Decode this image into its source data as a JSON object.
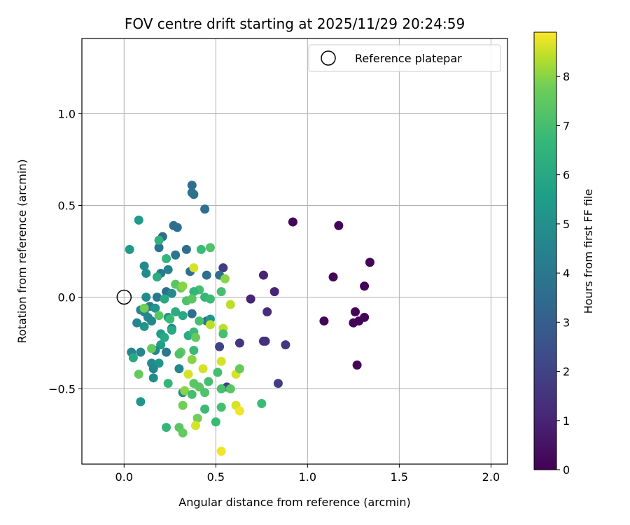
{
  "chart_data": {
    "type": "scatter",
    "title": "FOV centre drift starting at 2025/11/29 20:24:59",
    "xlabel": "Angular distance from reference (arcmin)",
    "ylabel": "Rotation from reference (arcmin)",
    "xlim": [
      -0.23,
      2.09
    ],
    "ylim": [
      -0.91,
      1.41
    ],
    "xticks": [
      0.0,
      0.5,
      1.0,
      1.5,
      2.0
    ],
    "xtick_labels": [
      "0.0",
      "0.5",
      "1.0",
      "1.5",
      "2.0"
    ],
    "yticks": [
      -0.5,
      0.0,
      0.5,
      1.0
    ],
    "ytick_labels": [
      "−0.5",
      "0.0",
      "0.5",
      "1.0"
    ],
    "grid": true,
    "legend": {
      "location": "top-right",
      "entries": [
        "Reference platepar"
      ]
    },
    "reference_point": {
      "x": 0.0,
      "y": 0.0,
      "label": "Reference platepar"
    },
    "colorbar": {
      "label": "Hours from first FF file",
      "colormap": "viridis",
      "range": [
        0,
        8.9
      ],
      "ticks": [
        0,
        1,
        2,
        3,
        4,
        5,
        6,
        7,
        8
      ],
      "tick_labels": [
        "0",
        "1",
        "2",
        "3",
        "4",
        "5",
        "6",
        "7",
        "8"
      ]
    },
    "points": [
      {
        "x": 0.92,
        "y": 0.41,
        "h": 0.1
      },
      {
        "x": 1.17,
        "y": 0.39,
        "h": 0.1
      },
      {
        "x": 1.34,
        "y": 0.19,
        "h": 0.1
      },
      {
        "x": 1.14,
        "y": 0.11,
        "h": 0.1
      },
      {
        "x": 1.31,
        "y": 0.06,
        "h": 0.1
      },
      {
        "x": 1.26,
        "y": -0.08,
        "h": 0.1
      },
      {
        "x": 1.31,
        "y": -0.11,
        "h": 0.1
      },
      {
        "x": 1.28,
        "y": -0.13,
        "h": 0.1
      },
      {
        "x": 1.25,
        "y": -0.14,
        "h": 0.1
      },
      {
        "x": 1.09,
        "y": -0.13,
        "h": 0.1
      },
      {
        "x": 1.27,
        "y": -0.37,
        "h": 0.1
      },
      {
        "x": 0.82,
        "y": 0.03,
        "h": 1.0
      },
      {
        "x": 0.76,
        "y": 0.12,
        "h": 1.0
      },
      {
        "x": 0.69,
        "y": -0.01,
        "h": 1.0
      },
      {
        "x": 0.78,
        "y": -0.08,
        "h": 1.3
      },
      {
        "x": 0.77,
        "y": -0.24,
        "h": 1.4
      },
      {
        "x": 0.76,
        "y": -0.24,
        "h": 1.4
      },
      {
        "x": 0.88,
        "y": -0.26,
        "h": 1.6
      },
      {
        "x": 0.63,
        "y": -0.25,
        "h": 1.6
      },
      {
        "x": 0.84,
        "y": -0.47,
        "h": 1.8
      },
      {
        "x": 0.54,
        "y": 0.16,
        "h": 1.8
      },
      {
        "x": 0.52,
        "y": -0.27,
        "h": 2.0
      },
      {
        "x": 0.56,
        "y": -0.49,
        "h": 2.0
      },
      {
        "x": 0.37,
        "y": 0.61,
        "h": 3.6
      },
      {
        "x": 0.37,
        "y": 0.57,
        "h": 3.8
      },
      {
        "x": 0.38,
        "y": 0.56,
        "h": 3.8
      },
      {
        "x": 0.44,
        "y": 0.48,
        "h": 3.6
      },
      {
        "x": 0.27,
        "y": 0.39,
        "h": 3.6
      },
      {
        "x": 0.29,
        "y": 0.38,
        "h": 3.6
      },
      {
        "x": 0.21,
        "y": 0.33,
        "h": 3.6
      },
      {
        "x": 0.34,
        "y": 0.26,
        "h": 3.6
      },
      {
        "x": 0.19,
        "y": 0.27,
        "h": 3.8
      },
      {
        "x": 0.28,
        "y": 0.23,
        "h": 4.0
      },
      {
        "x": 0.36,
        "y": 0.14,
        "h": 3.6
      },
      {
        "x": 0.45,
        "y": 0.12,
        "h": 3.6
      },
      {
        "x": 0.52,
        "y": 0.12,
        "h": 3.6
      },
      {
        "x": 0.24,
        "y": 0.15,
        "h": 4.4
      },
      {
        "x": 0.2,
        "y": 0.13,
        "h": 4.0
      },
      {
        "x": 0.11,
        "y": 0.17,
        "h": 4.8
      },
      {
        "x": 0.12,
        "y": 0.13,
        "h": 4.8
      },
      {
        "x": 0.12,
        "y": 0.0,
        "h": 4.8
      },
      {
        "x": 0.23,
        "y": 0.03,
        "h": 3.6
      },
      {
        "x": 0.18,
        "y": 0.0,
        "h": 4.0
      },
      {
        "x": 0.26,
        "y": 0.02,
        "h": 4.8
      },
      {
        "x": 0.09,
        "y": -0.07,
        "h": 4.6
      },
      {
        "x": 0.11,
        "y": -0.08,
        "h": 4.6
      },
      {
        "x": 0.14,
        "y": -0.05,
        "h": 4.2
      },
      {
        "x": 0.07,
        "y": -0.14,
        "h": 4.6
      },
      {
        "x": 0.13,
        "y": -0.11,
        "h": 4.6
      },
      {
        "x": 0.15,
        "y": -0.13,
        "h": 4.6
      },
      {
        "x": 0.11,
        "y": -0.16,
        "h": 5.2
      },
      {
        "x": 0.17,
        "y": -0.06,
        "h": 5.2
      },
      {
        "x": 0.24,
        "y": -0.11,
        "h": 5.2
      },
      {
        "x": 0.26,
        "y": -0.17,
        "h": 4.4
      },
      {
        "x": 0.37,
        "y": -0.09,
        "h": 3.6
      },
      {
        "x": 0.45,
        "y": -0.13,
        "h": 3.6
      },
      {
        "x": 0.47,
        "y": -0.12,
        "h": 5.2
      },
      {
        "x": 0.2,
        "y": -0.2,
        "h": 5.6
      },
      {
        "x": 0.2,
        "y": -0.26,
        "h": 5.6
      },
      {
        "x": 0.17,
        "y": -0.29,
        "h": 4.6
      },
      {
        "x": 0.23,
        "y": -0.3,
        "h": 4.0
      },
      {
        "x": 0.04,
        "y": -0.3,
        "h": 4.6
      },
      {
        "x": 0.09,
        "y": -0.3,
        "h": 4.6
      },
      {
        "x": 0.05,
        "y": -0.33,
        "h": 6.0
      },
      {
        "x": 0.15,
        "y": -0.36,
        "h": 4.8
      },
      {
        "x": 0.19,
        "y": -0.36,
        "h": 5.2
      },
      {
        "x": 0.16,
        "y": -0.39,
        "h": 4.6
      },
      {
        "x": 0.3,
        "y": -0.39,
        "h": 4.6
      },
      {
        "x": 0.16,
        "y": -0.44,
        "h": 4.8
      },
      {
        "x": 0.32,
        "y": -0.52,
        "h": 4.6
      },
      {
        "x": 0.09,
        "y": -0.57,
        "h": 5.2
      },
      {
        "x": 0.03,
        "y": 0.26,
        "h": 5.4
      },
      {
        "x": 0.08,
        "y": 0.42,
        "h": 5.4
      },
      {
        "x": 0.19,
        "y": 0.31,
        "h": 6.4
      },
      {
        "x": 0.23,
        "y": 0.21,
        "h": 6.6
      },
      {
        "x": 0.18,
        "y": 0.11,
        "h": 6.2
      },
      {
        "x": 0.42,
        "y": 0.26,
        "h": 6.8
      },
      {
        "x": 0.47,
        "y": 0.27,
        "h": 7.2
      },
      {
        "x": 0.38,
        "y": 0.16,
        "h": 8.6
      },
      {
        "x": 0.55,
        "y": 0.1,
        "h": 8.0
      },
      {
        "x": 0.53,
        "y": 0.03,
        "h": 7.0
      },
      {
        "x": 0.41,
        "y": 0.04,
        "h": 7.0
      },
      {
        "x": 0.28,
        "y": 0.07,
        "h": 7.4
      },
      {
        "x": 0.31,
        "y": 0.05,
        "h": 7.6
      },
      {
        "x": 0.32,
        "y": 0.06,
        "h": 8.0
      },
      {
        "x": 0.38,
        "y": 0.03,
        "h": 6.6
      },
      {
        "x": 0.44,
        "y": 0.0,
        "h": 6.6
      },
      {
        "x": 0.47,
        "y": -0.01,
        "h": 6.8
      },
      {
        "x": 0.34,
        "y": -0.02,
        "h": 7.2
      },
      {
        "x": 0.37,
        "y": -0.01,
        "h": 7.4
      },
      {
        "x": 0.58,
        "y": -0.04,
        "h": 8.4
      },
      {
        "x": 0.22,
        "y": -0.01,
        "h": 6.0
      },
      {
        "x": 0.11,
        "y": -0.06,
        "h": 7.8
      },
      {
        "x": 0.19,
        "y": -0.1,
        "h": 7.4
      },
      {
        "x": 0.25,
        "y": -0.12,
        "h": 6.8
      },
      {
        "x": 0.28,
        "y": -0.08,
        "h": 6.2
      },
      {
        "x": 0.32,
        "y": -0.1,
        "h": 6.0
      },
      {
        "x": 0.41,
        "y": -0.13,
        "h": 7.0
      },
      {
        "x": 0.47,
        "y": -0.15,
        "h": 8.4
      },
      {
        "x": 0.54,
        "y": -0.17,
        "h": 8.4
      },
      {
        "x": 0.54,
        "y": -0.2,
        "h": 7.0
      },
      {
        "x": 0.35,
        "y": -0.21,
        "h": 6.2
      },
      {
        "x": 0.38,
        "y": -0.19,
        "h": 6.8
      },
      {
        "x": 0.39,
        "y": -0.22,
        "h": 7.6
      },
      {
        "x": 0.26,
        "y": -0.18,
        "h": 6.0
      },
      {
        "x": 0.22,
        "y": -0.22,
        "h": 6.0
      },
      {
        "x": 0.15,
        "y": -0.28,
        "h": 7.6
      },
      {
        "x": 0.31,
        "y": -0.3,
        "h": 7.6
      },
      {
        "x": 0.3,
        "y": -0.31,
        "h": 7.2
      },
      {
        "x": 0.38,
        "y": -0.29,
        "h": 6.8
      },
      {
        "x": 0.37,
        "y": -0.34,
        "h": 8.0
      },
      {
        "x": 0.53,
        "y": -0.35,
        "h": 8.6
      },
      {
        "x": 0.51,
        "y": -0.41,
        "h": 7.0
      },
      {
        "x": 0.43,
        "y": -0.39,
        "h": 8.6
      },
      {
        "x": 0.35,
        "y": -0.42,
        "h": 8.6
      },
      {
        "x": 0.08,
        "y": -0.42,
        "h": 7.6
      },
      {
        "x": 0.24,
        "y": -0.47,
        "h": 6.6
      },
      {
        "x": 0.38,
        "y": -0.47,
        "h": 7.4
      },
      {
        "x": 0.41,
        "y": -0.49,
        "h": 7.4
      },
      {
        "x": 0.44,
        "y": -0.52,
        "h": 7.2
      },
      {
        "x": 0.46,
        "y": -0.46,
        "h": 7.0
      },
      {
        "x": 0.53,
        "y": -0.5,
        "h": 7.0
      },
      {
        "x": 0.58,
        "y": -0.5,
        "h": 7.4
      },
      {
        "x": 0.61,
        "y": -0.42,
        "h": 8.6
      },
      {
        "x": 0.63,
        "y": -0.39,
        "h": 7.6
      },
      {
        "x": 0.33,
        "y": -0.51,
        "h": 8.0
      },
      {
        "x": 0.37,
        "y": -0.53,
        "h": 7.0
      },
      {
        "x": 0.32,
        "y": -0.59,
        "h": 7.8
      },
      {
        "x": 0.44,
        "y": -0.61,
        "h": 6.8
      },
      {
        "x": 0.53,
        "y": -0.6,
        "h": 7.0
      },
      {
        "x": 0.61,
        "y": -0.59,
        "h": 8.6
      },
      {
        "x": 0.63,
        "y": -0.62,
        "h": 8.8
      },
      {
        "x": 0.75,
        "y": -0.58,
        "h": 6.8
      },
      {
        "x": 0.4,
        "y": -0.66,
        "h": 7.8
      },
      {
        "x": 0.5,
        "y": -0.68,
        "h": 6.8
      },
      {
        "x": 0.23,
        "y": -0.71,
        "h": 6.6
      },
      {
        "x": 0.3,
        "y": -0.71,
        "h": 7.4
      },
      {
        "x": 0.39,
        "y": -0.7,
        "h": 8.6
      },
      {
        "x": 0.32,
        "y": -0.74,
        "h": 7.6
      },
      {
        "x": 0.53,
        "y": -0.84,
        "h": 8.8
      }
    ]
  }
}
